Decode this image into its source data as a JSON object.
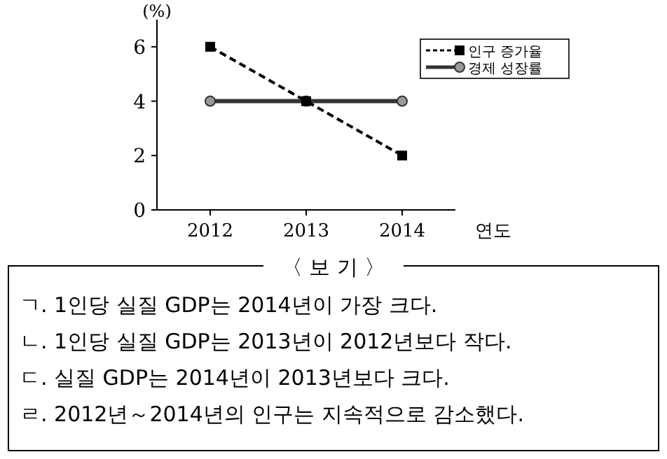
{
  "chart_data": {
    "type": "line",
    "ylabel": "(%)",
    "xlabel": "연도",
    "categories": [
      "2012",
      "2013",
      "2014"
    ],
    "series": [
      {
        "name": "인구 증가율",
        "color": "#000000",
        "values": [
          6,
          4,
          2
        ],
        "marker": "square",
        "line_style": "dashed"
      },
      {
        "name": "경제 성장률",
        "color": "#333333",
        "values": [
          4,
          4,
          4
        ],
        "marker": "circle",
        "line_style": "solid"
      }
    ],
    "ylim": [
      0,
      7
    ],
    "yticks": [
      0,
      2,
      4,
      6
    ],
    "legend": "top right",
    "annotations": [
      "〈 보 기 〉",
      "ㄱ. 1인당 실질 GDP는 2014년이 가장 크다.",
      "ㄴ. 1인당 실질 GDP는 2013년이 2012년보다 작다.",
      "ㄷ. 실질 GDP는 2014년이 2013년보다 크다.",
      "ㄹ. 2012년～2014년의 인구는 지속적으로 감소했다."
    ]
  }
}
